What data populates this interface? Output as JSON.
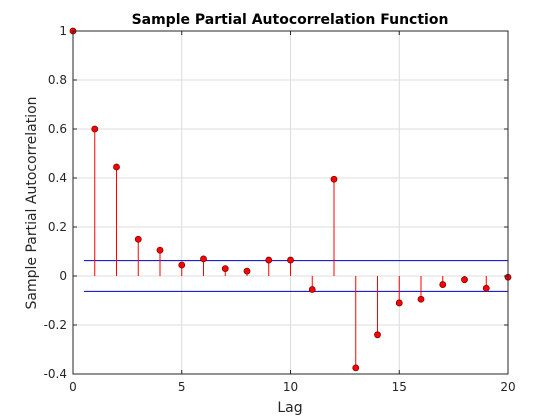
{
  "chart_data": {
    "type": "stem",
    "title": "Sample Partial Autocorrelation Function",
    "xlabel": "Lag",
    "ylabel": "Sample Partial Autocorrelation",
    "xlim": [
      0,
      20
    ],
    "ylim": [
      -0.4,
      1
    ],
    "xticks": [
      0,
      5,
      10,
      15,
      20
    ],
    "xtick_labels": [
      "0",
      "5",
      "10",
      "15",
      "20"
    ],
    "yticks": [
      -0.4,
      -0.2,
      0,
      0.2,
      0.4,
      0.6,
      0.8,
      1
    ],
    "ytick_labels": [
      "-0.4",
      "-0.2",
      "0",
      "0.2",
      "0.4",
      "0.6",
      "0.8",
      "1"
    ],
    "grid": true,
    "series": [
      {
        "x": [
          0,
          1,
          2,
          3,
          4,
          5,
          6,
          7,
          8,
          9,
          10,
          11,
          12,
          13,
          14,
          15,
          16,
          17,
          18,
          19,
          20
        ],
        "values": [
          1.0,
          0.6,
          0.445,
          0.15,
          0.105,
          0.045,
          0.07,
          0.03,
          0.02,
          0.065,
          0.065,
          -0.055,
          0.395,
          -0.375,
          -0.24,
          -0.11,
          -0.095,
          -0.035,
          -0.015,
          -0.05,
          -0.005
        ],
        "color": "#ff0000",
        "stem_color": "#ff0000",
        "marker_color": "#ff0000",
        "marker_edge": "#800000"
      }
    ],
    "confidence_bounds": {
      "upper": 0.063,
      "lower": -0.063,
      "color": "#0000c8"
    }
  }
}
